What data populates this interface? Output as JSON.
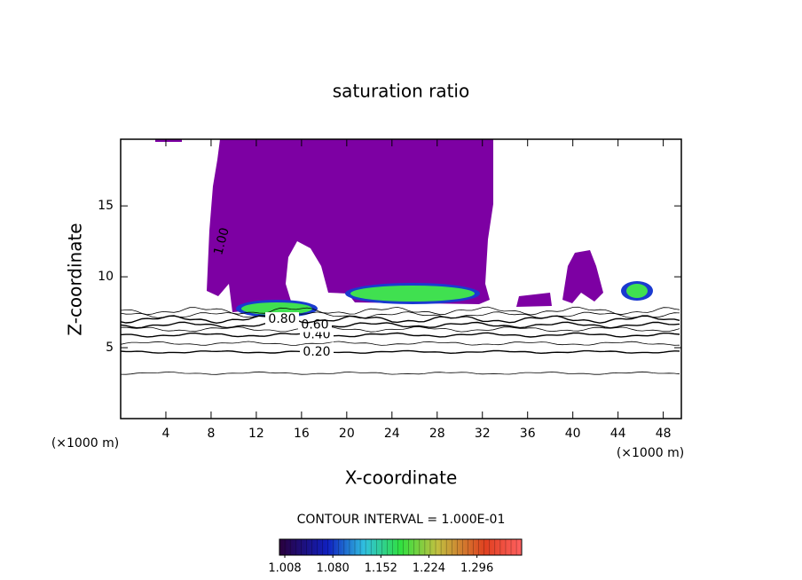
{
  "chart_data": {
    "type": "contour",
    "title": "saturation ratio",
    "xlabel": "X-coordinate",
    "ylabel": "Z-coordinate",
    "x_unit": "(×1000 m)",
    "y_unit": "(×1000 m)",
    "xlim": [
      0,
      49.6
    ],
    "xticks": [
      4,
      8,
      12,
      16,
      20,
      24,
      28,
      32,
      36,
      40,
      44,
      48
    ],
    "ylim": [
      0,
      19.7
    ],
    "yticks": [
      5,
      10,
      15
    ],
    "fill_color": "#7d00a3",
    "contours": [
      {
        "value": 0.2,
        "label": "0.20",
        "z": 4.7
      },
      {
        "value": 0.4,
        "label": "0.40",
        "z": 5.9
      },
      {
        "value": 0.6,
        "label": "0.60",
        "z": 6.6
      },
      {
        "value": 0.8,
        "label": "0.80",
        "z": 7.0
      },
      {
        "value": 1.0,
        "label": "1.00",
        "z": 12.5
      }
    ],
    "contour_interval": "CONTOUR INTERVAL = 1.000E-01",
    "clim": [
      1.0,
      1.363
    ],
    "colorbar_ticks": [
      1.008,
      {
        "value": 1.08,
        "label": "1.080"
      },
      1.152,
      1.224,
      1.296
    ]
  }
}
